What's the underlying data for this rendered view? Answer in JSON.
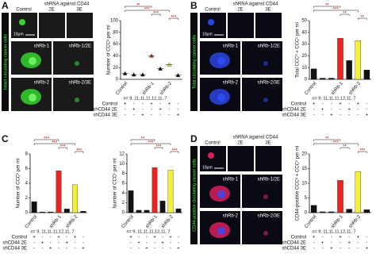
{
  "micrograph_labels": {
    "header": "shRNA against CD44",
    "control": "Control",
    "e2": "2E",
    "e3": "3E",
    "rb1": "shRb-1",
    "rb1_2e": "shRb-1/2E",
    "rb2": "shRb-2",
    "rb2_3e": "shRb-2/3E",
    "scale": "10μm"
  },
  "conditions": {
    "n": "n= 9, 11,11,11,12,11, 7",
    "rows": [
      {
        "label": "Control",
        "signs": [
          "+",
          "-",
          "-",
          "+",
          "-",
          "+",
          "-"
        ]
      },
      {
        "label": "shCD44 2E",
        "signs": [
          "-",
          "+",
          "-",
          "-",
          "+",
          "-",
          "-"
        ]
      },
      {
        "label": "shCD44 3E",
        "signs": [
          "-",
          "-",
          "+",
          "-",
          "-",
          "-",
          "+"
        ]
      }
    ],
    "categories": [
      "Control",
      "shRb-1",
      "shRb-2"
    ],
    "bar_colors": [
      "#111111",
      "#111111",
      "#111111",
      "#e8251f",
      "#111111",
      "#f2ee3a",
      "#111111"
    ]
  },
  "panels": [
    {
      "label": "A",
      "side_label": "Intact circulating cancer cells",
      "charts": [
        {
          "type": "scatter",
          "y_label": "Number of CCCˢ per ml",
          "ylim": [
            0,
            100
          ],
          "yticks": [
            0,
            20,
            40,
            60,
            80,
            100
          ],
          "values": [
            10,
            8,
            8,
            40,
            18,
            25,
            7
          ],
          "significance": [
            "**",
            "***",
            "***",
            "***"
          ]
        }
      ]
    },
    {
      "label": "B",
      "side_label": "Total circulating cancer cells",
      "charts": [
        {
          "type": "bar",
          "y_label": "Total CCCˢ + CCCᶜ per ml",
          "ylim": [
            0,
            50
          ],
          "yticks": [
            0,
            10,
            20,
            30,
            40,
            50
          ],
          "values": [
            9,
            1,
            1,
            35,
            16,
            33,
            8
          ],
          "significance": [
            "**",
            "**",
            "**",
            "***"
          ]
        }
      ]
    },
    {
      "label": "C",
      "charts": [
        {
          "type": "bar",
          "y_label": "Number of CCCˢ per ml",
          "ylim": [
            0,
            8
          ],
          "yticks": [
            0,
            2,
            4,
            6,
            8
          ],
          "values": [
            1.5,
            0.1,
            0.1,
            5.7,
            0.5,
            3.8,
            0.2
          ],
          "significance": [
            "***",
            "***",
            "***",
            "***"
          ]
        },
        {
          "type": "bar",
          "y_label": "Number of CCCᶜ per ml",
          "ylim": [
            0,
            12
          ],
          "yticks": [
            0,
            2,
            4,
            6,
            8,
            10,
            12
          ],
          "values": [
            4.5,
            0.5,
            0.5,
            9.2,
            2.4,
            8.7,
            0.8
          ],
          "significance": [
            "**",
            "***",
            "***",
            "***"
          ]
        }
      ]
    },
    {
      "label": "D",
      "side_label": "CD44-positive circulating cancer cells",
      "charts": [
        {
          "type": "bar",
          "y_label": "CD44-positive CCCˢ + CCCᶜ per ml",
          "ylim": [
            0,
            20
          ],
          "yticks": [
            0,
            5,
            10,
            15,
            20
          ],
          "values": [
            2.5,
            0.3,
            0.3,
            11,
            1.2,
            14,
            1
          ],
          "significance": [
            "**",
            "**",
            "***",
            "***"
          ]
        }
      ]
    }
  ]
}
